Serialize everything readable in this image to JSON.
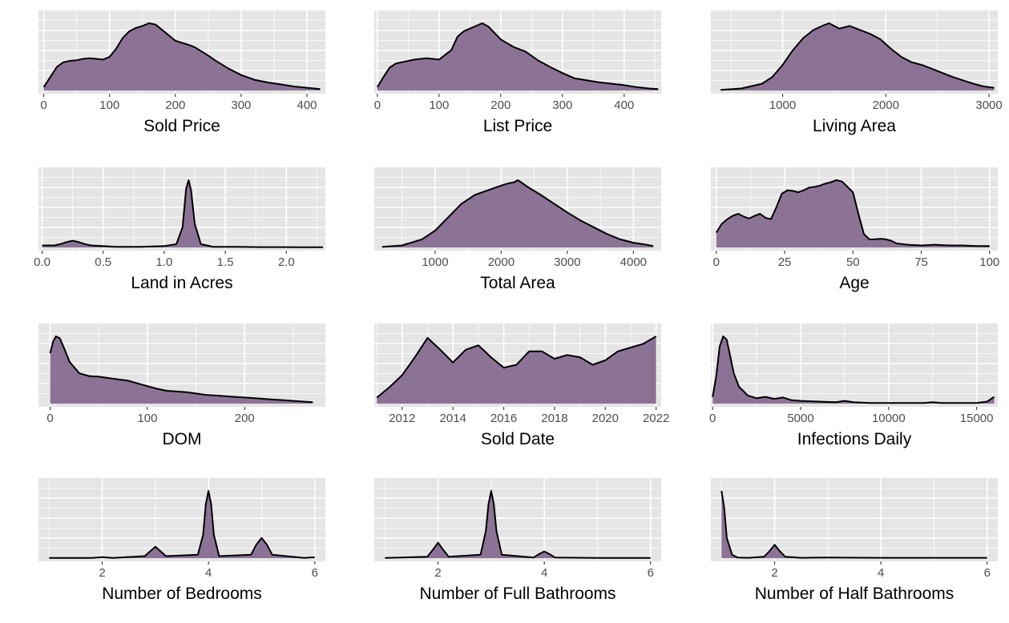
{
  "style": {
    "panel_bg": "#e5e5e5",
    "grid_color": "#ffffff",
    "fill_color": "#8c7396",
    "line_color": "#000000",
    "tick_text_color": "#4d4d4d"
  },
  "chart_data": [
    {
      "type": "area",
      "xlabel": "Sold Price",
      "xlim": [
        -8,
        428
      ],
      "ticks": [
        0,
        100,
        200,
        300,
        400
      ],
      "x": [
        0,
        10,
        20,
        30,
        40,
        50,
        60,
        70,
        80,
        90,
        100,
        110,
        120,
        130,
        140,
        150,
        160,
        170,
        180,
        190,
        200,
        210,
        220,
        230,
        240,
        250,
        260,
        270,
        280,
        290,
        300,
        320,
        340,
        360,
        380,
        400,
        420
      ],
      "y": [
        0.05,
        0.2,
        0.35,
        0.42,
        0.44,
        0.45,
        0.47,
        0.48,
        0.47,
        0.46,
        0.5,
        0.62,
        0.78,
        0.88,
        0.93,
        0.96,
        1.0,
        0.98,
        0.9,
        0.82,
        0.74,
        0.71,
        0.68,
        0.64,
        0.58,
        0.52,
        0.45,
        0.39,
        0.33,
        0.28,
        0.23,
        0.16,
        0.12,
        0.09,
        0.06,
        0.04,
        0.02
      ]
    },
    {
      "type": "area",
      "xlabel": "List Price",
      "xlim": [
        -5,
        460
      ],
      "ticks": [
        0,
        100,
        200,
        300,
        400
      ],
      "x": [
        0,
        10,
        20,
        30,
        40,
        60,
        80,
        100,
        120,
        130,
        140,
        150,
        160,
        170,
        180,
        200,
        220,
        240,
        260,
        280,
        300,
        320,
        340,
        360,
        380,
        400,
        420,
        440,
        455
      ],
      "y": [
        0.05,
        0.2,
        0.34,
        0.4,
        0.42,
        0.46,
        0.48,
        0.46,
        0.6,
        0.8,
        0.88,
        0.92,
        0.96,
        1.0,
        0.95,
        0.76,
        0.65,
        0.58,
        0.45,
        0.35,
        0.26,
        0.18,
        0.15,
        0.12,
        0.1,
        0.08,
        0.05,
        0.03,
        0.02
      ]
    },
    {
      "type": "area",
      "xlabel": "Living Area",
      "xlim": [
        305,
        3085
      ],
      "ticks": [
        1000,
        2000,
        3000
      ],
      "x": [
        400,
        600,
        800,
        900,
        1000,
        1100,
        1200,
        1300,
        1400,
        1450,
        1550,
        1650,
        1750,
        1850,
        1950,
        2050,
        2150,
        2250,
        2350,
        2450,
        2550,
        2650,
        2750,
        2850,
        2950,
        3050
      ],
      "y": [
        0.01,
        0.03,
        0.1,
        0.2,
        0.38,
        0.6,
        0.78,
        0.9,
        0.97,
        1.0,
        0.92,
        0.96,
        0.9,
        0.84,
        0.76,
        0.62,
        0.5,
        0.42,
        0.38,
        0.32,
        0.26,
        0.2,
        0.15,
        0.1,
        0.06,
        0.04
      ]
    },
    {
      "type": "area",
      "xlabel": "Land in Acres",
      "xlim": [
        -0.03,
        2.32
      ],
      "ticks": [
        0,
        0.5,
        1,
        1.5,
        2
      ],
      "tick_labels": [
        "0.0",
        "0.5",
        "1.0",
        "1.5",
        "2.0"
      ],
      "x": [
        0,
        0.05,
        0.1,
        0.15,
        0.2,
        0.25,
        0.3,
        0.35,
        0.4,
        0.5,
        0.6,
        0.8,
        1.0,
        1.1,
        1.15,
        1.18,
        1.2,
        1.22,
        1.25,
        1.3,
        1.4,
        1.6,
        1.8,
        2.0,
        2.1,
        2.3
      ],
      "y": [
        0.03,
        0.03,
        0.03,
        0.05,
        0.08,
        0.1,
        0.08,
        0.05,
        0.03,
        0.02,
        0.01,
        0.01,
        0.02,
        0.05,
        0.3,
        0.88,
        1.0,
        0.85,
        0.35,
        0.05,
        0.01,
        0.01,
        0.005,
        0.005,
        0.003,
        0.003
      ]
    },
    {
      "type": "area",
      "xlabel": "Total Area",
      "xlim": [
        80,
        4420
      ],
      "ticks": [
        1000,
        2000,
        3000,
        4000
      ],
      "x": [
        200,
        500,
        800,
        1000,
        1200,
        1400,
        1600,
        1800,
        2000,
        2100,
        2200,
        2250,
        2300,
        2400,
        2600,
        2800,
        3000,
        3200,
        3400,
        3600,
        3800,
        4000,
        4200,
        4300
      ],
      "y": [
        0.01,
        0.03,
        0.12,
        0.25,
        0.45,
        0.65,
        0.78,
        0.85,
        0.92,
        0.95,
        0.97,
        1.0,
        0.97,
        0.9,
        0.78,
        0.65,
        0.52,
        0.4,
        0.3,
        0.2,
        0.12,
        0.07,
        0.04,
        0.02
      ]
    },
    {
      "type": "area",
      "xlabel": "Age",
      "xlim": [
        -2,
        103
      ],
      "ticks": [
        0,
        25,
        50,
        75,
        100
      ],
      "x": [
        0,
        2,
        4,
        6,
        8,
        10,
        12,
        14,
        16,
        18,
        20,
        22,
        24,
        26,
        28,
        30,
        32,
        34,
        36,
        38,
        40,
        42,
        44,
        46,
        48,
        50,
        52,
        54,
        56,
        58,
        60,
        62,
        64,
        66,
        70,
        75,
        80,
        85,
        90,
        95,
        100
      ],
      "y": [
        0.22,
        0.35,
        0.42,
        0.47,
        0.5,
        0.46,
        0.43,
        0.47,
        0.5,
        0.44,
        0.42,
        0.6,
        0.8,
        0.85,
        0.84,
        0.82,
        0.85,
        0.89,
        0.9,
        0.92,
        0.95,
        0.97,
        1.0,
        0.98,
        0.9,
        0.82,
        0.5,
        0.2,
        0.12,
        0.12,
        0.13,
        0.12,
        0.1,
        0.06,
        0.04,
        0.03,
        0.04,
        0.03,
        0.03,
        0.02,
        0.02
      ]
    },
    {
      "type": "area",
      "xlabel": "DOM",
      "xlim": [
        -12,
        283
      ],
      "ticks": [
        0,
        100,
        200
      ],
      "x": [
        0,
        3,
        6,
        10,
        15,
        20,
        30,
        40,
        50,
        60,
        70,
        80,
        90,
        100,
        110,
        120,
        130,
        140,
        150,
        160,
        170,
        180,
        190,
        200,
        210,
        220,
        230,
        240,
        250,
        260,
        270
      ],
      "y": [
        0.75,
        0.92,
        1.0,
        0.97,
        0.8,
        0.62,
        0.45,
        0.41,
        0.4,
        0.38,
        0.36,
        0.34,
        0.3,
        0.26,
        0.22,
        0.19,
        0.18,
        0.17,
        0.15,
        0.13,
        0.12,
        0.11,
        0.1,
        0.09,
        0.08,
        0.07,
        0.06,
        0.05,
        0.04,
        0.03,
        0.02
      ]
    },
    {
      "type": "area",
      "xlabel": "Sold Date",
      "xlim": [
        2010.9,
        2022.2
      ],
      "ticks": [
        2012,
        2014,
        2016,
        2018,
        2020,
        2022
      ],
      "x": [
        2011,
        2011.5,
        2012,
        2012.5,
        2013,
        2013.5,
        2014,
        2014.5,
        2015,
        2015.5,
        2016,
        2016.5,
        2017,
        2017.5,
        2018,
        2018.5,
        2019,
        2019.5,
        2020,
        2020.5,
        2021,
        2021.5,
        2022
      ],
      "y": [
        0.08,
        0.22,
        0.38,
        0.62,
        0.88,
        0.72,
        0.55,
        0.72,
        0.78,
        0.62,
        0.48,
        0.52,
        0.7,
        0.7,
        0.6,
        0.65,
        0.62,
        0.52,
        0.58,
        0.7,
        0.75,
        0.8,
        0.9
      ]
    },
    {
      "type": "area",
      "xlabel": "Infections Daily",
      "xlim": [
        -100,
        16200
      ],
      "ticks": [
        0,
        5000,
        10000,
        15000
      ],
      "x": [
        0,
        200,
        400,
        600,
        800,
        1000,
        1200,
        1500,
        2000,
        2500,
        3000,
        3500,
        4000,
        4500,
        5000,
        6000,
        7000,
        7500,
        8000,
        9000,
        10000,
        11000,
        12000,
        12500,
        13000,
        14000,
        15000,
        15600,
        16000
      ],
      "y": [
        0.1,
        0.4,
        0.85,
        1.0,
        0.95,
        0.7,
        0.45,
        0.25,
        0.12,
        0.08,
        0.1,
        0.07,
        0.09,
        0.05,
        0.04,
        0.03,
        0.02,
        0.04,
        0.02,
        0.01,
        0.01,
        0.01,
        0.01,
        0.02,
        0.01,
        0.01,
        0.01,
        0.03,
        0.1
      ]
    },
    {
      "type": "area",
      "xlabel": "Number of Bedrooms",
      "xlim": [
        0.8,
        6.2
      ],
      "ticks": [
        2,
        4,
        6
      ],
      "x": [
        1,
        1.8,
        1.9,
        2.0,
        2.1,
        2.2,
        2.8,
        2.9,
        3.0,
        3.1,
        3.2,
        3.8,
        3.9,
        3.95,
        4.0,
        4.05,
        4.1,
        4.2,
        4.8,
        4.9,
        5.0,
        5.1,
        5.2,
        5.8,
        5.9,
        6.0
      ],
      "y": [
        0.003,
        0.003,
        0.008,
        0.015,
        0.008,
        0.003,
        0.03,
        0.1,
        0.17,
        0.1,
        0.03,
        0.05,
        0.35,
        0.8,
        1.0,
        0.8,
        0.35,
        0.03,
        0.05,
        0.2,
        0.3,
        0.2,
        0.05,
        0.003,
        0.008,
        0.012
      ]
    },
    {
      "type": "area",
      "xlabel": "Number of Full Bathrooms",
      "xlim": [
        0.8,
        6.2
      ],
      "ticks": [
        2,
        4,
        6
      ],
      "x": [
        1,
        1.8,
        1.9,
        2.0,
        2.1,
        2.2,
        2.8,
        2.9,
        2.95,
        3.0,
        3.05,
        3.1,
        3.2,
        3.8,
        3.9,
        4.0,
        4.1,
        4.2,
        5.0,
        6.0
      ],
      "y": [
        0.003,
        0.02,
        0.12,
        0.23,
        0.12,
        0.02,
        0.05,
        0.4,
        0.8,
        1.0,
        0.8,
        0.4,
        0.05,
        0.01,
        0.06,
        0.1,
        0.06,
        0.01,
        0.003,
        0.003
      ]
    },
    {
      "type": "area",
      "xlabel": "Number of Half Bathrooms",
      "xlim": [
        0.8,
        6.2
      ],
      "ticks": [
        2,
        4,
        6
      ],
      "x": [
        1.0,
        1.05,
        1.1,
        1.2,
        1.3,
        1.5,
        1.8,
        1.9,
        2.0,
        2.1,
        2.2,
        2.5,
        3.0,
        4.0,
        5.0,
        6.0
      ],
      "y": [
        1.0,
        0.75,
        0.3,
        0.05,
        0.01,
        0.005,
        0.02,
        0.1,
        0.2,
        0.1,
        0.02,
        0.005,
        0.01,
        0.005,
        0.005,
        0.005
      ]
    }
  ]
}
